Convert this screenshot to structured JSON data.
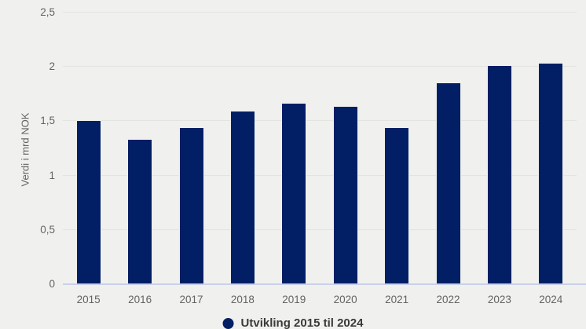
{
  "chart_data": {
    "type": "bar",
    "categories": [
      "2015",
      "2016",
      "2017",
      "2018",
      "2019",
      "2020",
      "2021",
      "2022",
      "2023",
      "2024"
    ],
    "values": [
      1.5,
      1.33,
      1.44,
      1.59,
      1.66,
      1.63,
      1.44,
      1.85,
      2.01,
      2.03
    ],
    "title": "",
    "xlabel": "",
    "ylabel": "Verdi i mrd NOK",
    "ylim": [
      0,
      2.5
    ],
    "yticks": [
      0,
      0.5,
      1,
      1.5,
      2,
      2.5
    ],
    "ytick_labels": [
      "0",
      "0,5",
      "1",
      "1,5",
      "2",
      "2,5"
    ],
    "grid": true,
    "legend_position": "bottom",
    "legend": [
      {
        "label": "Utvikling 2015 til 2024",
        "color": "#021f66"
      }
    ]
  },
  "colors": {
    "background": "#f0f1ee",
    "bar": "#021f66",
    "gridline": "#e2e4df",
    "axis_line": "#c9d0e9",
    "tick_text": "#636363",
    "legend_text": "#3a3a3a"
  }
}
